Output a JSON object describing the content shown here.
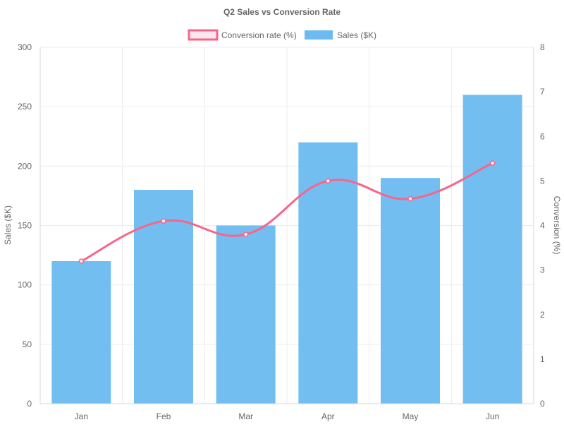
{
  "chart_data": {
    "type": "bar",
    "title": "Q2 Sales vs Conversion Rate",
    "categories": [
      "Jan",
      "Feb",
      "Mar",
      "Apr",
      "May",
      "Jun"
    ],
    "series": [
      {
        "name": "Sales ($K)",
        "type": "bar",
        "axis": "left",
        "color": "#6cbbf0",
        "values": [
          120,
          180,
          150,
          220,
          190,
          260
        ]
      },
      {
        "name": "Conversion rate (%)",
        "type": "line",
        "axis": "right",
        "color": "#f7658a",
        "values": [
          3.2,
          4.1,
          3.8,
          5.0,
          4.6,
          5.4
        ]
      }
    ],
    "y_left": {
      "label": "Sales ($K)",
      "range": [
        0,
        300
      ],
      "ticks": [
        "0",
        "50",
        "100",
        "150",
        "200",
        "250",
        "300"
      ]
    },
    "y_right": {
      "label": "Conversion (%)",
      "range": [
        0,
        8
      ],
      "ticks": [
        "0",
        "1",
        "2",
        "3",
        "4",
        "5",
        "6",
        "7",
        "8"
      ]
    },
    "legend": {
      "position": "top",
      "items": [
        "Conversion rate (%)",
        "Sales ($K)"
      ]
    },
    "grid": true
  }
}
